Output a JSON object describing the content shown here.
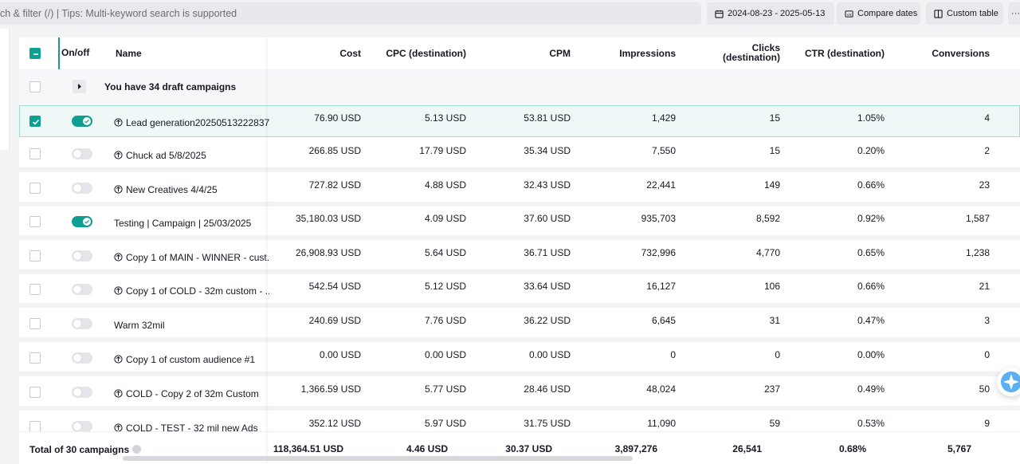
{
  "toolbar": {
    "search_placeholder": "ch & filter (/) | Tips: Multi-keyword search is supported",
    "date_range": "2024-08-23 - 2025-05-13",
    "compare_label": "Compare dates",
    "custom_table_label": "Custom table",
    "more_label": "···"
  },
  "colors": {
    "accent": "#0f9e92",
    "selected_row_bg": "#eef8f7"
  },
  "table": {
    "headers": {
      "onoff": "On/off",
      "name": "Name",
      "cost": "Cost",
      "cpc": "CPC (destination)",
      "cpm": "CPM",
      "impressions": "Impressions",
      "clicks_1": "Clicks",
      "clicks_2": "(destination)",
      "ctr": "CTR (destination)",
      "conversions": "Conversions"
    },
    "draft_row": {
      "label": "You have 34 draft campaigns"
    },
    "rows": [
      {
        "name": "Lead generation20250513222837",
        "on": true,
        "selected": true,
        "icon": "campaign-target-icon",
        "cost": "76.90 USD",
        "cpc": "5.13 USD",
        "cpm": "53.81 USD",
        "impressions": "1,429",
        "clicks": "15",
        "ctr": "1.05%",
        "conversions": "4"
      },
      {
        "name": "Chuck ad 5/8/2025",
        "on": false,
        "selected": false,
        "icon": "campaign-target-icon",
        "cost": "266.85 USD",
        "cpc": "17.79 USD",
        "cpm": "35.34 USD",
        "impressions": "7,550",
        "clicks": "15",
        "ctr": "0.20%",
        "conversions": "2"
      },
      {
        "name": "New Creatives 4/4/25",
        "on": false,
        "selected": false,
        "icon": "campaign-target-icon",
        "cost": "727.82 USD",
        "cpc": "4.88 USD",
        "cpm": "32.43 USD",
        "impressions": "22,441",
        "clicks": "149",
        "ctr": "0.66%",
        "conversions": "23"
      },
      {
        "name": "Testing | Campaign | 25/03/2025",
        "on": true,
        "selected": false,
        "icon": "",
        "cost": "35,180.03 USD",
        "cpc": "4.09 USD",
        "cpm": "37.60 USD",
        "impressions": "935,703",
        "clicks": "8,592",
        "ctr": "0.92%",
        "conversions": "1,587"
      },
      {
        "name": "Copy 1 of MAIN - WINNER - cust...",
        "on": false,
        "selected": false,
        "icon": "campaign-target-icon",
        "cost": "26,908.93 USD",
        "cpc": "5.64 USD",
        "cpm": "36.71 USD",
        "impressions": "732,996",
        "clicks": "4,770",
        "ctr": "0.65%",
        "conversions": "1,238"
      },
      {
        "name": "Copy 1 of COLD - 32m custom - ...",
        "on": false,
        "selected": false,
        "icon": "campaign-target-icon",
        "cost": "542.54 USD",
        "cpc": "5.12 USD",
        "cpm": "33.64 USD",
        "impressions": "16,127",
        "clicks": "106",
        "ctr": "0.66%",
        "conversions": "21"
      },
      {
        "name": "Warm 32mil",
        "on": false,
        "selected": false,
        "icon": "",
        "cost": "240.69 USD",
        "cpc": "7.76 USD",
        "cpm": "36.22 USD",
        "impressions": "6,645",
        "clicks": "31",
        "ctr": "0.47%",
        "conversions": "3"
      },
      {
        "name": "Copy 1 of custom audience #1",
        "on": false,
        "selected": false,
        "icon": "campaign-target-icon",
        "cost": "0.00 USD",
        "cpc": "0.00 USD",
        "cpm": "0.00 USD",
        "impressions": "0",
        "clicks": "0",
        "ctr": "0.00%",
        "conversions": "0"
      },
      {
        "name": "COLD - Copy 2 of 32m Custom",
        "on": false,
        "selected": false,
        "icon": "campaign-target-icon",
        "cost": "1,366.59 USD",
        "cpc": "5.77 USD",
        "cpm": "28.46 USD",
        "impressions": "48,024",
        "clicks": "237",
        "ctr": "0.49%",
        "conversions": "50"
      },
      {
        "name": "COLD - TEST - 32 mil new Ads",
        "on": false,
        "selected": false,
        "icon": "campaign-target-icon",
        "cost": "352.12 USD",
        "cpc": "5.97 USD",
        "cpm": "31.75 USD",
        "impressions": "11,090",
        "clicks": "59",
        "ctr": "0.53%",
        "conversions": "9"
      }
    ],
    "totals": {
      "label": "Total of 30 campaigns",
      "cost": "118,364.51 USD",
      "cpc": "4.46 USD",
      "cpm": "30.37 USD",
      "impressions": "3,897,276",
      "clicks": "26,541",
      "ctr": "0.68%",
      "conversions": "5,767"
    }
  }
}
